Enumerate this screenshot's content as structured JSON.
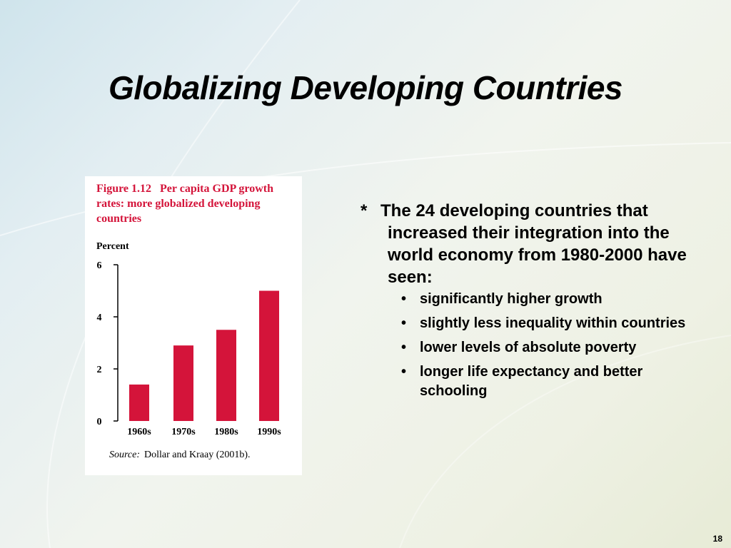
{
  "slide": {
    "title": "Globalizing Developing Countries",
    "page_number": "18"
  },
  "figure": {
    "caption_label": "Figure 1.12",
    "caption_text": "Per capita GDP growth rates: more globalized developing countries",
    "source_label": "Source:",
    "source_text": "Dollar and Kraay (2001b).",
    "bar_color": "#d4143a",
    "caption_color": "#d4143a"
  },
  "chart_data": {
    "type": "bar",
    "title": "Figure 1.12 Per capita GDP growth rates: more globalized developing countries",
    "ylabel": "Percent",
    "xlabel": "",
    "categories": [
      "1960s",
      "1970s",
      "1980s",
      "1990s"
    ],
    "values": [
      1.4,
      2.9,
      3.5,
      5.0
    ],
    "ylim": [
      0,
      6
    ],
    "yticks": [
      0,
      2,
      4,
      6
    ],
    "grid": false,
    "legend": "none"
  },
  "content": {
    "marker": "*",
    "main_point": "The 24 developing countries that increased their integration into the world economy from 1980-2000 have seen:",
    "sub_points": [
      "significantly higher growth",
      "slightly less inequality within countries",
      "lower levels of absolute poverty",
      "longer life expectancy and better schooling"
    ],
    "bullet_glyph": "•"
  }
}
